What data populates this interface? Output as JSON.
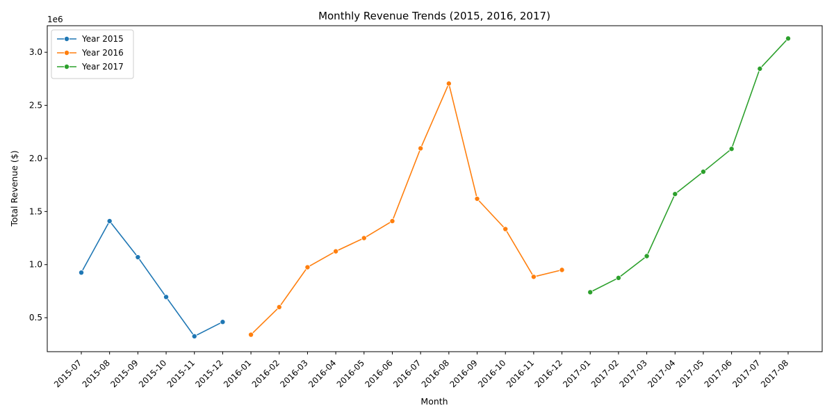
{
  "chart_data": {
    "type": "line",
    "title": "Monthly Revenue Trends (2015, 2016, 2017)",
    "xlabel": "Month",
    "ylabel": "Total Revenue ($)",
    "y_scale_label": "1e6",
    "ylim": [
      180000,
      3250000
    ],
    "yticks": [
      500000,
      1000000,
      1500000,
      2000000,
      2500000,
      3000000
    ],
    "ytick_labels": [
      "0.5",
      "1.0",
      "1.5",
      "2.0",
      "2.5",
      "3.0"
    ],
    "categories": [
      "2015-07",
      "2015-08",
      "2015-09",
      "2015-10",
      "2015-11",
      "2015-12",
      "2016-01",
      "2016-02",
      "2016-03",
      "2016-04",
      "2016-05",
      "2016-06",
      "2016-07",
      "2016-08",
      "2016-09",
      "2016-10",
      "2016-11",
      "2016-12",
      "2017-01",
      "2017-02",
      "2017-03",
      "2017-04",
      "2017-05",
      "2017-06",
      "2017-07",
      "2017-08"
    ],
    "legend_position": "upper-left",
    "series": [
      {
        "name": "Year 2015",
        "color": "#1f77b4",
        "x": [
          "2015-07",
          "2015-08",
          "2015-09",
          "2015-10",
          "2015-11",
          "2015-12"
        ],
        "values": [
          925000,
          1410000,
          1070000,
          695000,
          325000,
          460000
        ]
      },
      {
        "name": "Year 2016",
        "color": "#ff7f0e",
        "x": [
          "2016-01",
          "2016-02",
          "2016-03",
          "2016-04",
          "2016-05",
          "2016-06",
          "2016-07",
          "2016-08",
          "2016-09",
          "2016-10",
          "2016-11",
          "2016-12"
        ],
        "values": [
          340000,
          600000,
          975000,
          1125000,
          1250000,
          1410000,
          2095000,
          2705000,
          1620000,
          1335000,
          885000,
          950000
        ]
      },
      {
        "name": "Year 2017",
        "color": "#2ca02c",
        "x": [
          "2017-01",
          "2017-02",
          "2017-03",
          "2017-04",
          "2017-05",
          "2017-06",
          "2017-07",
          "2017-08"
        ],
        "values": [
          740000,
          875000,
          1080000,
          1665000,
          1875000,
          2090000,
          2845000,
          3130000
        ]
      }
    ]
  }
}
